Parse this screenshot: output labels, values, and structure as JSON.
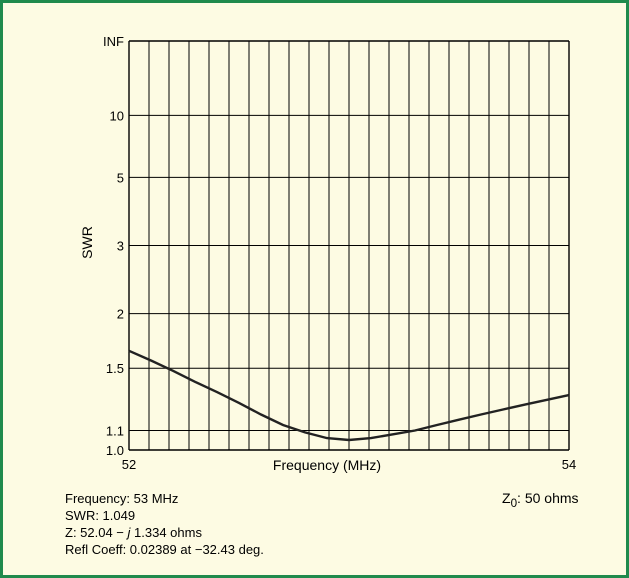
{
  "chart_data": {
    "type": "line",
    "xlabel": "Frequency (MHz)",
    "ylabel": "SWR",
    "xlim": [
      52,
      54
    ],
    "x_tick_labels": [
      "52",
      "54"
    ],
    "y_scale": "reflection-coefficient (Smith) scale",
    "y_ticks": [
      {
        "value": 1.0,
        "label": "1.0"
      },
      {
        "value": 1.1,
        "label": "1.1"
      },
      {
        "value": 1.5,
        "label": "1.5"
      },
      {
        "value": 2,
        "label": "2"
      },
      {
        "value": 3,
        "label": "3"
      },
      {
        "value": 5,
        "label": "5"
      },
      {
        "value": 10,
        "label": "10"
      },
      {
        "value": "INF",
        "label": "INF"
      }
    ],
    "x_grid_divisions": 22,
    "grid": true,
    "series": [
      {
        "x": [
          52.0,
          52.1,
          52.2,
          52.3,
          52.4,
          52.5,
          52.6,
          52.7,
          52.8,
          52.9,
          53.0,
          53.1,
          53.2,
          53.3,
          53.4,
          53.5,
          53.6,
          53.7,
          53.8,
          53.9,
          54.0
        ],
        "y": [
          1.64,
          1.56,
          1.48,
          1.4,
          1.33,
          1.26,
          1.19,
          1.13,
          1.09,
          1.06,
          1.05,
          1.06,
          1.08,
          1.1,
          1.13,
          1.16,
          1.19,
          1.22,
          1.25,
          1.28,
          1.31
        ],
        "color": "#222222"
      }
    ]
  },
  "readout": {
    "frequency": "Frequency: 53 MHz",
    "swr": "SWR: 1.049",
    "z_prefix": "Z: 52.04 − ",
    "z_j": "j",
    "z_suffix": " 1.334 ohms",
    "refl": "Refl Coeff: 0.02389 at −32.43 deg."
  },
  "z0": {
    "z": "Z",
    "sub": "0",
    "rest": ": 50 ohms"
  },
  "colors": {
    "frame_border": "#1f8a4c",
    "background": "#fdfbe3"
  }
}
